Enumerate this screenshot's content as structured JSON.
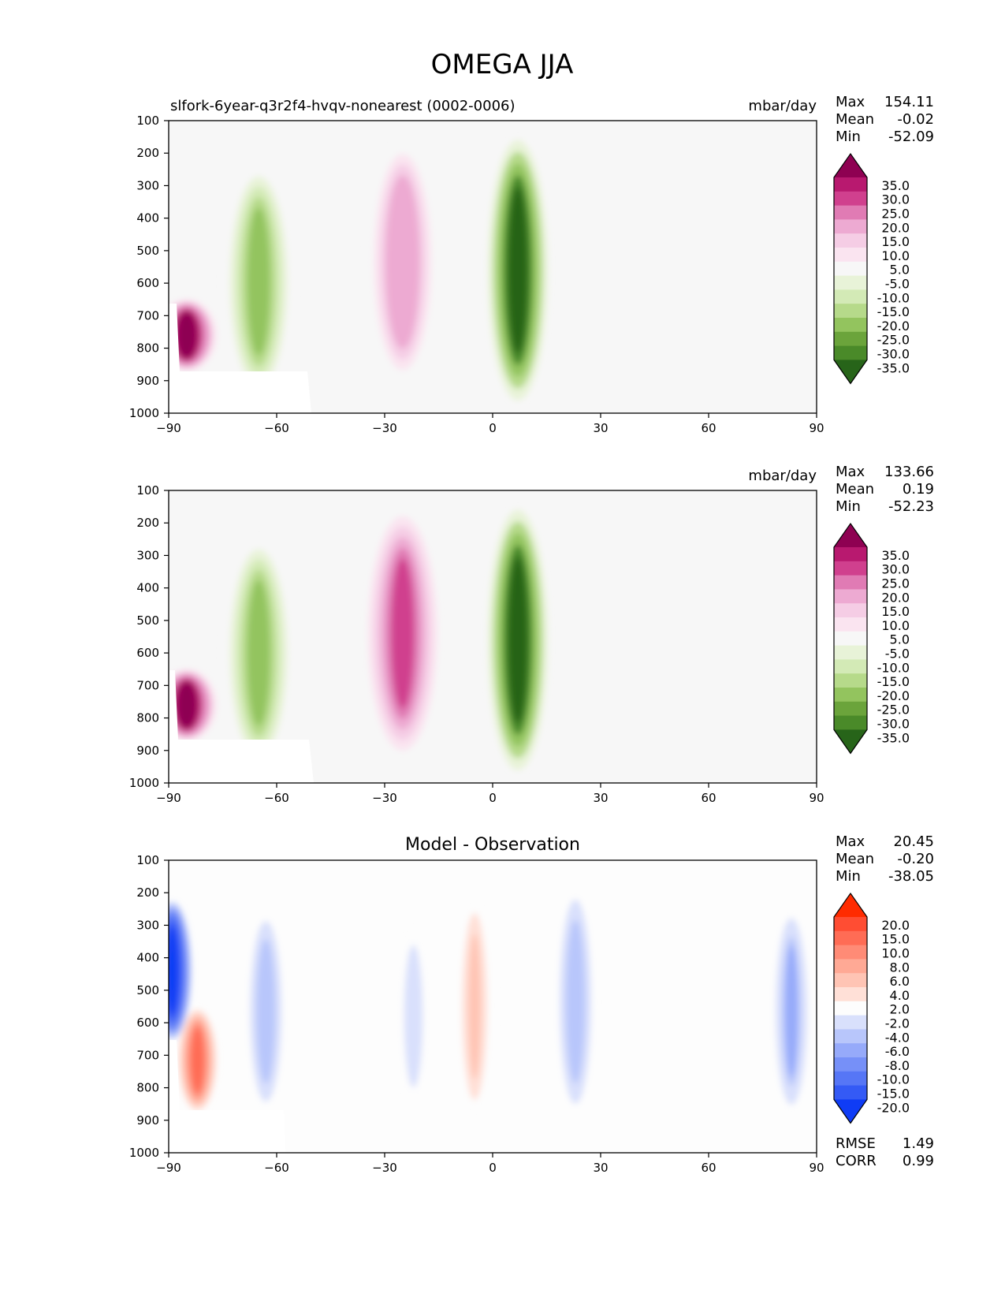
{
  "figure_title": "OMEGA JJA",
  "chart_data": [
    {
      "type": "contour",
      "title_left": "slfork-6year-q3r2f4-hvqv-nonearest (0002-0006)",
      "title_center": "",
      "units": "mbar/day",
      "xlim": [
        -90,
        90
      ],
      "ylim": [
        1000,
        100
      ],
      "xticks": [
        "−90",
        "−60",
        "−30",
        "0",
        "30",
        "60",
        "90"
      ],
      "yticks": [
        "100",
        "200",
        "300",
        "400",
        "500",
        "600",
        "700",
        "800",
        "900",
        "1000"
      ],
      "stats": [
        [
          "Max",
          "154.11"
        ],
        [
          "Mean",
          "-0.02"
        ],
        [
          "Min",
          "-52.09"
        ]
      ],
      "colorbar": {
        "labels": [
          "35.0",
          "30.0",
          "25.0",
          "20.0",
          "15.0",
          "10.0",
          "5.0",
          "-5.0",
          "-10.0",
          "-15.0",
          "-20.0",
          "-25.0",
          "-30.0",
          "-35.0"
        ],
        "colors": [
          "#8e0152",
          "#b8196f",
          "#d0408e",
          "#e07bb4",
          "#edaad2",
          "#f5cde5",
          "#fae4f0",
          "#f7f7f7",
          "#e8f3d8",
          "#d3eab6",
          "#b6da8a",
          "#93c45e",
          "#6ba43b",
          "#4a8a29",
          "#276419"
        ]
      },
      "features": [
        {
          "name": "sh-subtropical-descent",
          "x": -25,
          "pmin": 170,
          "pmax": 900,
          "peak": 20
        },
        {
          "name": "itcz-ascent",
          "x": 7,
          "pmin": 160,
          "pmax": 960,
          "peak": -40
        },
        {
          "name": "southern-ocean-ascent",
          "x": -65,
          "pmin": 240,
          "pmax": 950,
          "peak": -22
        },
        {
          "name": "antarctic-descent",
          "x": -85,
          "pmin": 650,
          "pmax": 870,
          "peak": 38
        }
      ]
    },
    {
      "type": "contour",
      "title_left": "",
      "title_center": "",
      "units": "mbar/day",
      "xlim": [
        -90,
        90
      ],
      "ylim": [
        1000,
        100
      ],
      "xticks": [
        "−90",
        "−60",
        "−30",
        "0",
        "30",
        "60",
        "90"
      ],
      "yticks": [
        "100",
        "200",
        "300",
        "400",
        "500",
        "600",
        "700",
        "800",
        "900",
        "1000"
      ],
      "stats": [
        [
          "Max",
          "133.66"
        ],
        [
          "Mean",
          "0.19"
        ],
        [
          "Min",
          "-52.23"
        ]
      ],
      "colorbar": {
        "labels": [
          "35.0",
          "30.0",
          "25.0",
          "20.0",
          "15.0",
          "10.0",
          "5.0",
          "-5.0",
          "-10.0",
          "-15.0",
          "-20.0",
          "-25.0",
          "-30.0",
          "-35.0"
        ],
        "colors": [
          "#8e0152",
          "#b8196f",
          "#d0408e",
          "#e07bb4",
          "#edaad2",
          "#f5cde5",
          "#fae4f0",
          "#f7f7f7",
          "#e8f3d8",
          "#d3eab6",
          "#b6da8a",
          "#93c45e",
          "#6ba43b",
          "#4a8a29",
          "#276419"
        ]
      },
      "features": [
        {
          "name": "sh-subtropical-descent",
          "x": -25,
          "pmin": 180,
          "pmax": 900,
          "peak": 27
        },
        {
          "name": "itcz-ascent",
          "x": 7,
          "pmin": 160,
          "pmax": 960,
          "peak": -40
        },
        {
          "name": "southern-ocean-ascent",
          "x": -65,
          "pmin": 250,
          "pmax": 950,
          "peak": -20
        },
        {
          "name": "antarctic-descent",
          "x": -85,
          "pmin": 650,
          "pmax": 870,
          "peak": 38
        }
      ]
    },
    {
      "type": "contour",
      "title_left": "",
      "title_center": "Model - Observation",
      "units": "",
      "xlim": [
        -90,
        90
      ],
      "ylim": [
        1000,
        100
      ],
      "xticks": [
        "−90",
        "−60",
        "−30",
        "0",
        "30",
        "60",
        "90"
      ],
      "yticks": [
        "100",
        "200",
        "300",
        "400",
        "500",
        "600",
        "700",
        "800",
        "900",
        "1000"
      ],
      "stats": [
        [
          "Max",
          "20.45"
        ],
        [
          "Mean",
          "-0.20"
        ],
        [
          "Min",
          "-38.05"
        ]
      ],
      "extra_stats": [
        [
          "RMSE",
          "1.49"
        ],
        [
          "CORR",
          "0.99"
        ]
      ],
      "colorbar": {
        "labels": [
          "20.0",
          "15.0",
          "10.0",
          "8.0",
          "6.0",
          "4.0",
          "2.0",
          "-2.0",
          "-4.0",
          "-6.0",
          "-8.0",
          "-10.0",
          "-15.0",
          "-20.0"
        ],
        "colors": [
          "#ff2b00",
          "#ff4d33",
          "#ff6c55",
          "#ff8b76",
          "#ffa995",
          "#ffc4b4",
          "#ffe0d7",
          "#fdfdfd",
          "#d9e0fc",
          "#b8c6fb",
          "#96aafa",
          "#7690f8",
          "#5676f6",
          "#345af5",
          "#0f3cf5"
        ]
      },
      "features": [
        {
          "name": "polar-negative",
          "x": -89,
          "pmin": 230,
          "pmax": 650,
          "peak": -20
        },
        {
          "name": "antarctic-positive",
          "x": -82,
          "pmin": 560,
          "pmax": 870,
          "peak": 12
        },
        {
          "name": "southern-ocean-negative",
          "x": -63,
          "pmin": 260,
          "pmax": 870,
          "peak": -5
        },
        {
          "name": "subtropical-negative",
          "x": -22,
          "pmin": 280,
          "pmax": 880,
          "peak": -3
        },
        {
          "name": "equatorial-positive",
          "x": -5,
          "pmin": 200,
          "pmax": 900,
          "peak": 5
        },
        {
          "name": "nh-negative",
          "x": 23,
          "pmin": 190,
          "pmax": 880,
          "peak": -5
        },
        {
          "name": "arctic-negative",
          "x": 83,
          "pmin": 250,
          "pmax": 880,
          "peak": -6
        }
      ]
    }
  ]
}
